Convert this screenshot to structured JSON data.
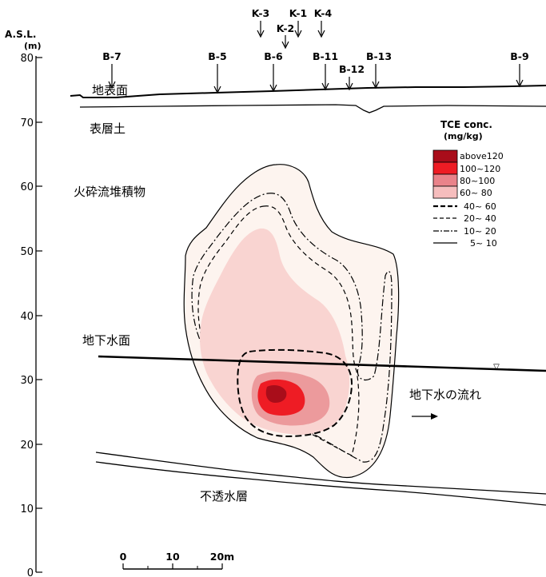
{
  "axis": {
    "title": "A.S.L.",
    "unit": "(m)",
    "ticks": [
      "80",
      "70",
      "60",
      "50",
      "40",
      "30",
      "20",
      "10",
      "0"
    ]
  },
  "boreholes": {
    "b7": "B-7",
    "b5": "B-5",
    "b6": "B-6",
    "b11": "B-11",
    "b12": "B-12",
    "b13": "B-13",
    "b9": "B-9",
    "k3": "K-3",
    "k2": "K-2",
    "k1": "K-1",
    "k4": "K-4"
  },
  "layers": {
    "ground_surface": "地表面",
    "topsoil": "表層土",
    "pyroclastic": "火砕流堆積物",
    "water_table": "地下水面",
    "impermeable": "不透水層",
    "flow": "地下水の流れ",
    "water_table_marker": "▽"
  },
  "legend": {
    "title": "TCE conc.",
    "unit": "(mg/kg)",
    "items": [
      {
        "label": "above120",
        "color": "#a90d1a",
        "kind": "fill"
      },
      {
        "label": "100~120",
        "color": "#ee1c24",
        "kind": "fill"
      },
      {
        "label": "80~100",
        "color": "#e9838a",
        "kind": "fill"
      },
      {
        "label": "60~ 80",
        "color": "#f6bdbd",
        "kind": "fill"
      },
      {
        "label": "40~ 60",
        "kind": "line",
        "dash": "heavy-dash"
      },
      {
        "label": "20~ 40",
        "kind": "line",
        "dash": "dash"
      },
      {
        "label": "10~ 20",
        "kind": "line",
        "dash": "dash-dot"
      },
      {
        "label": "5~ 10",
        "kind": "line",
        "dash": "solid"
      }
    ]
  },
  "scale": {
    "ticks": [
      "0",
      "10",
      "20m"
    ]
  },
  "colors": {
    "zone_5_10": "#fdf4ef",
    "zone_60_80": "#f9d4d1",
    "zone_80_100": "#ec9a9c",
    "zone_100_120": "#ee1c24",
    "zone_above120": "#a90d1a"
  }
}
